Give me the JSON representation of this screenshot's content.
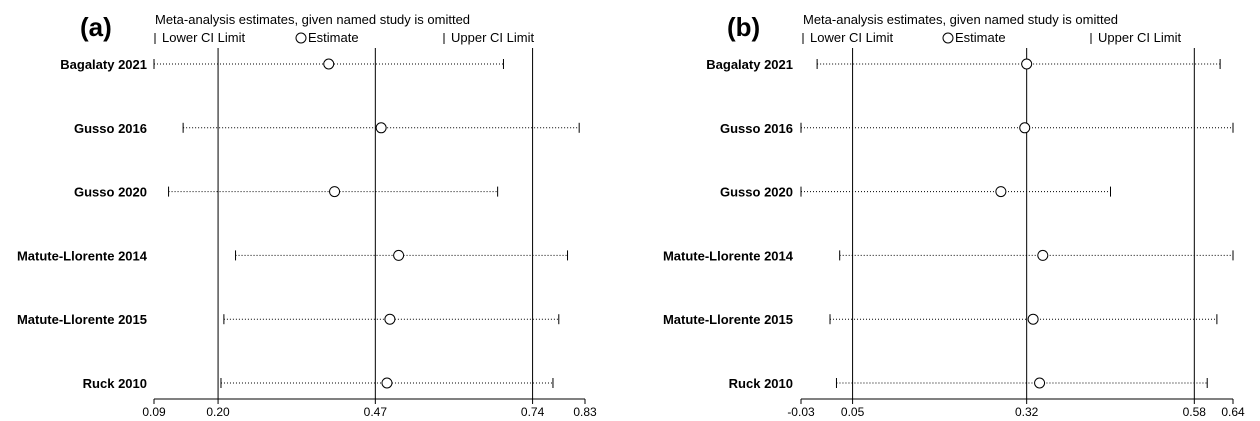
{
  "chart_data": [
    {
      "type": "forest",
      "panel_label": "(a)",
      "title": "Meta-analysis estimates, given named study is omitted",
      "legend": {
        "lower": "Lower CI Limit",
        "estimate": "Estimate",
        "upper": "Upper CI Limit"
      },
      "xlim": [
        0.09,
        0.83
      ],
      "xticks": [
        0.09,
        0.2,
        0.47,
        0.74,
        0.83
      ],
      "xtick_labels": [
        "0.09",
        "0.20",
        "0.47",
        "0.74",
        "0.83"
      ],
      "reference_lines": [
        0.2,
        0.47,
        0.74
      ],
      "studies": [
        {
          "name": "Bagalaty 2021",
          "lower": 0.09,
          "estimate": 0.39,
          "upper": 0.69
        },
        {
          "name": "Gusso 2016",
          "lower": 0.14,
          "estimate": 0.48,
          "upper": 0.82
        },
        {
          "name": "Gusso 2020",
          "lower": 0.115,
          "estimate": 0.4,
          "upper": 0.68
        },
        {
          "name": "Matute-Llorente 2014",
          "lower": 0.23,
          "estimate": 0.51,
          "upper": 0.8
        },
        {
          "name": "Matute-Llorente 2015",
          "lower": 0.21,
          "estimate": 0.495,
          "upper": 0.785
        },
        {
          "name": "Ruck 2010",
          "lower": 0.205,
          "estimate": 0.49,
          "upper": 0.775
        }
      ]
    },
    {
      "type": "forest",
      "panel_label": "(b)",
      "title": "Meta-analysis estimates, given named study is omitted",
      "legend": {
        "lower": "Lower CI Limit",
        "estimate": "Estimate",
        "upper": "Upper CI Limit"
      },
      "xlim": [
        -0.03,
        0.64
      ],
      "xticks": [
        -0.03,
        0.05,
        0.32,
        0.58,
        0.64
      ],
      "xtick_labels": [
        "-0.03",
        "0.05",
        "0.32",
        "0.58",
        "0.64"
      ],
      "reference_lines": [
        0.05,
        0.32,
        0.58
      ],
      "studies": [
        {
          "name": "Bagalaty 2021",
          "lower": -0.005,
          "estimate": 0.32,
          "upper": 0.62
        },
        {
          "name": "Gusso 2016",
          "lower": -0.03,
          "estimate": 0.317,
          "upper": 0.64
        },
        {
          "name": "Gusso 2020",
          "lower": -0.03,
          "estimate": 0.28,
          "upper": 0.45
        },
        {
          "name": "Matute-Llorente 2014",
          "lower": 0.03,
          "estimate": 0.345,
          "upper": 0.64
        },
        {
          "name": "Matute-Llorente 2015",
          "lower": 0.015,
          "estimate": 0.33,
          "upper": 0.615
        },
        {
          "name": "Ruck 2010",
          "lower": 0.025,
          "estimate": 0.34,
          "upper": 0.6
        }
      ]
    }
  ]
}
